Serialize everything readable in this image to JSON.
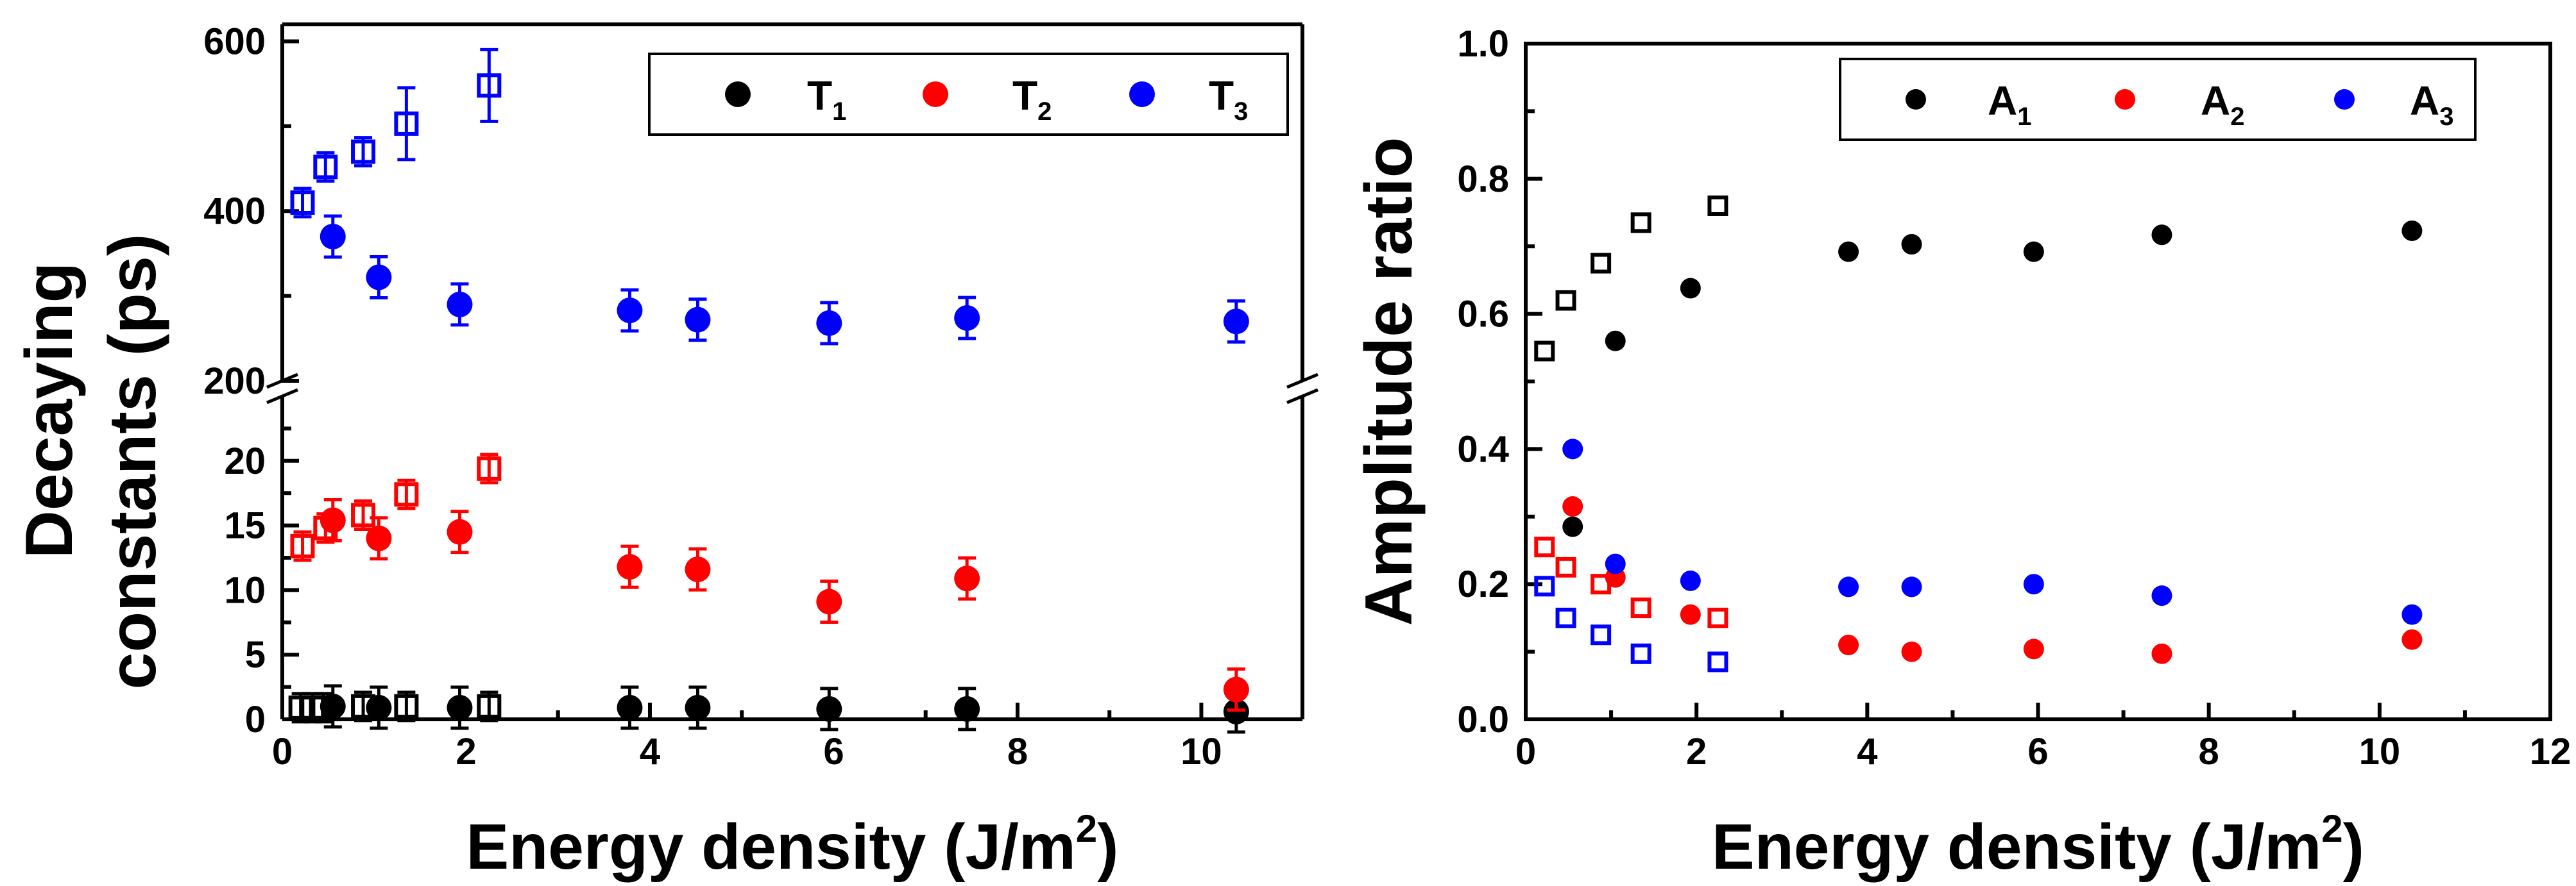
{
  "chart_data": [
    {
      "type": "scatter",
      "xlabel": "Energy density (J/m",
      "xlabel_sup": "2",
      "xlabel_close": ")",
      "ylabel_line1": "Decaying",
      "ylabel_line2": "constants (ps)",
      "xlim": [
        0,
        11.1
      ],
      "x_ticks": [
        "0",
        "2",
        "4",
        "6",
        "8",
        "10"
      ],
      "y_broken_axis": true,
      "ylim_lower": [
        0,
        25
      ],
      "ylim_upper": [
        200,
        620
      ],
      "y_ticks_lower": [
        "0",
        "5",
        "10",
        "15",
        "20"
      ],
      "y_ticks_upper": [
        "200",
        "400",
        "600"
      ],
      "legend_position": "top-right",
      "series": [
        {
          "name": "T",
          "name_sub": "1",
          "color": "#000000",
          "filled": [
            [
              0.55,
              1.0
            ],
            [
              1.05,
              0.9
            ],
            [
              1.93,
              0.9
            ],
            [
              3.78,
              0.9
            ],
            [
              4.52,
              0.9
            ],
            [
              5.95,
              0.8
            ],
            [
              7.45,
              0.8
            ],
            [
              10.38,
              0.6
            ]
          ],
          "open": [
            [
              0.2,
              0.9
            ],
            [
              0.33,
              0.9
            ],
            [
              0.45,
              0.9
            ],
            [
              0.88,
              1.0
            ],
            [
              1.35,
              1.0
            ],
            [
              2.25,
              1.0
            ]
          ]
        },
        {
          "name": "T",
          "name_sub": "2",
          "color": "#ff0000",
          "filled": [
            [
              0.55,
              15.4
            ],
            [
              1.05,
              14.0
            ],
            [
              1.93,
              14.5
            ],
            [
              3.78,
              11.8
            ],
            [
              4.52,
              11.6
            ],
            [
              5.95,
              9.1
            ],
            [
              7.45,
              10.9
            ],
            [
              10.38,
              2.3
            ]
          ],
          "open": [
            [
              0.22,
              13.4
            ],
            [
              0.47,
              14.8
            ],
            [
              0.88,
              15.8
            ],
            [
              1.35,
              17.4
            ],
            [
              2.25,
              19.4
            ]
          ]
        },
        {
          "name": "T",
          "name_sub": "3",
          "color": "#0000ff",
          "filled": [
            [
              0.55,
              370
            ],
            [
              1.05,
              322
            ],
            [
              1.93,
              290
            ],
            [
              3.78,
              283
            ],
            [
              4.52,
              272
            ],
            [
              5.95,
              268
            ],
            [
              7.45,
              274
            ],
            [
              10.38,
              270
            ]
          ],
          "open": [
            [
              0.22,
              410
            ],
            [
              0.47,
              452
            ],
            [
              0.88,
              470
            ],
            [
              1.35,
              503
            ],
            [
              2.25,
              548
            ]
          ]
        }
      ]
    },
    {
      "type": "scatter",
      "xlabel": "Energy density (J/m",
      "xlabel_sup": "2",
      "xlabel_close": ")",
      "ylabel": "Amplitude ratio",
      "xlim": [
        0,
        12
      ],
      "ylim": [
        0,
        1.0
      ],
      "x_ticks": [
        "0",
        "2",
        "4",
        "6",
        "8",
        "10",
        "12"
      ],
      "y_ticks": [
        "0.0",
        "0.2",
        "0.4",
        "0.6",
        "0.8",
        "1.0"
      ],
      "legend_position": "top-right",
      "series": [
        {
          "name": "A",
          "name_sub": "1",
          "color": "#000000",
          "filled": [
            [
              0.55,
              0.285
            ],
            [
              1.05,
              0.56
            ],
            [
              1.93,
              0.638
            ],
            [
              3.78,
              0.692
            ],
            [
              4.52,
              0.703
            ],
            [
              5.95,
              0.692
            ],
            [
              7.45,
              0.717
            ],
            [
              10.38,
              0.723
            ]
          ],
          "open": [
            [
              0.22,
              0.545
            ],
            [
              0.47,
              0.62
            ],
            [
              0.88,
              0.675
            ],
            [
              1.35,
              0.735
            ],
            [
              2.25,
              0.76
            ]
          ]
        },
        {
          "name": "A",
          "name_sub": "2",
          "color": "#ff0000",
          "filled": [
            [
              0.55,
              0.315
            ],
            [
              1.05,
              0.21
            ],
            [
              1.93,
              0.155
            ],
            [
              3.78,
              0.11
            ],
            [
              4.52,
              0.1
            ],
            [
              5.95,
              0.104
            ],
            [
              7.45,
              0.097
            ],
            [
              10.38,
              0.118
            ]
          ],
          "open": [
            [
              0.22,
              0.255
            ],
            [
              0.47,
              0.225
            ],
            [
              0.88,
              0.2
            ],
            [
              1.35,
              0.165
            ],
            [
              2.25,
              0.15
            ]
          ]
        },
        {
          "name": "A",
          "name_sub": "3",
          "color": "#0000ff",
          "filled": [
            [
              0.55,
              0.4
            ],
            [
              1.05,
              0.23
            ],
            [
              1.93,
              0.205
            ],
            [
              3.78,
              0.196
            ],
            [
              4.52,
              0.196
            ],
            [
              5.95,
              0.2
            ],
            [
              7.45,
              0.183
            ],
            [
              10.38,
              0.155
            ]
          ],
          "open": [
            [
              0.22,
              0.197
            ],
            [
              0.47,
              0.15
            ],
            [
              0.88,
              0.125
            ],
            [
              1.35,
              0.097
            ],
            [
              2.25,
              0.085
            ]
          ]
        }
      ]
    }
  ]
}
